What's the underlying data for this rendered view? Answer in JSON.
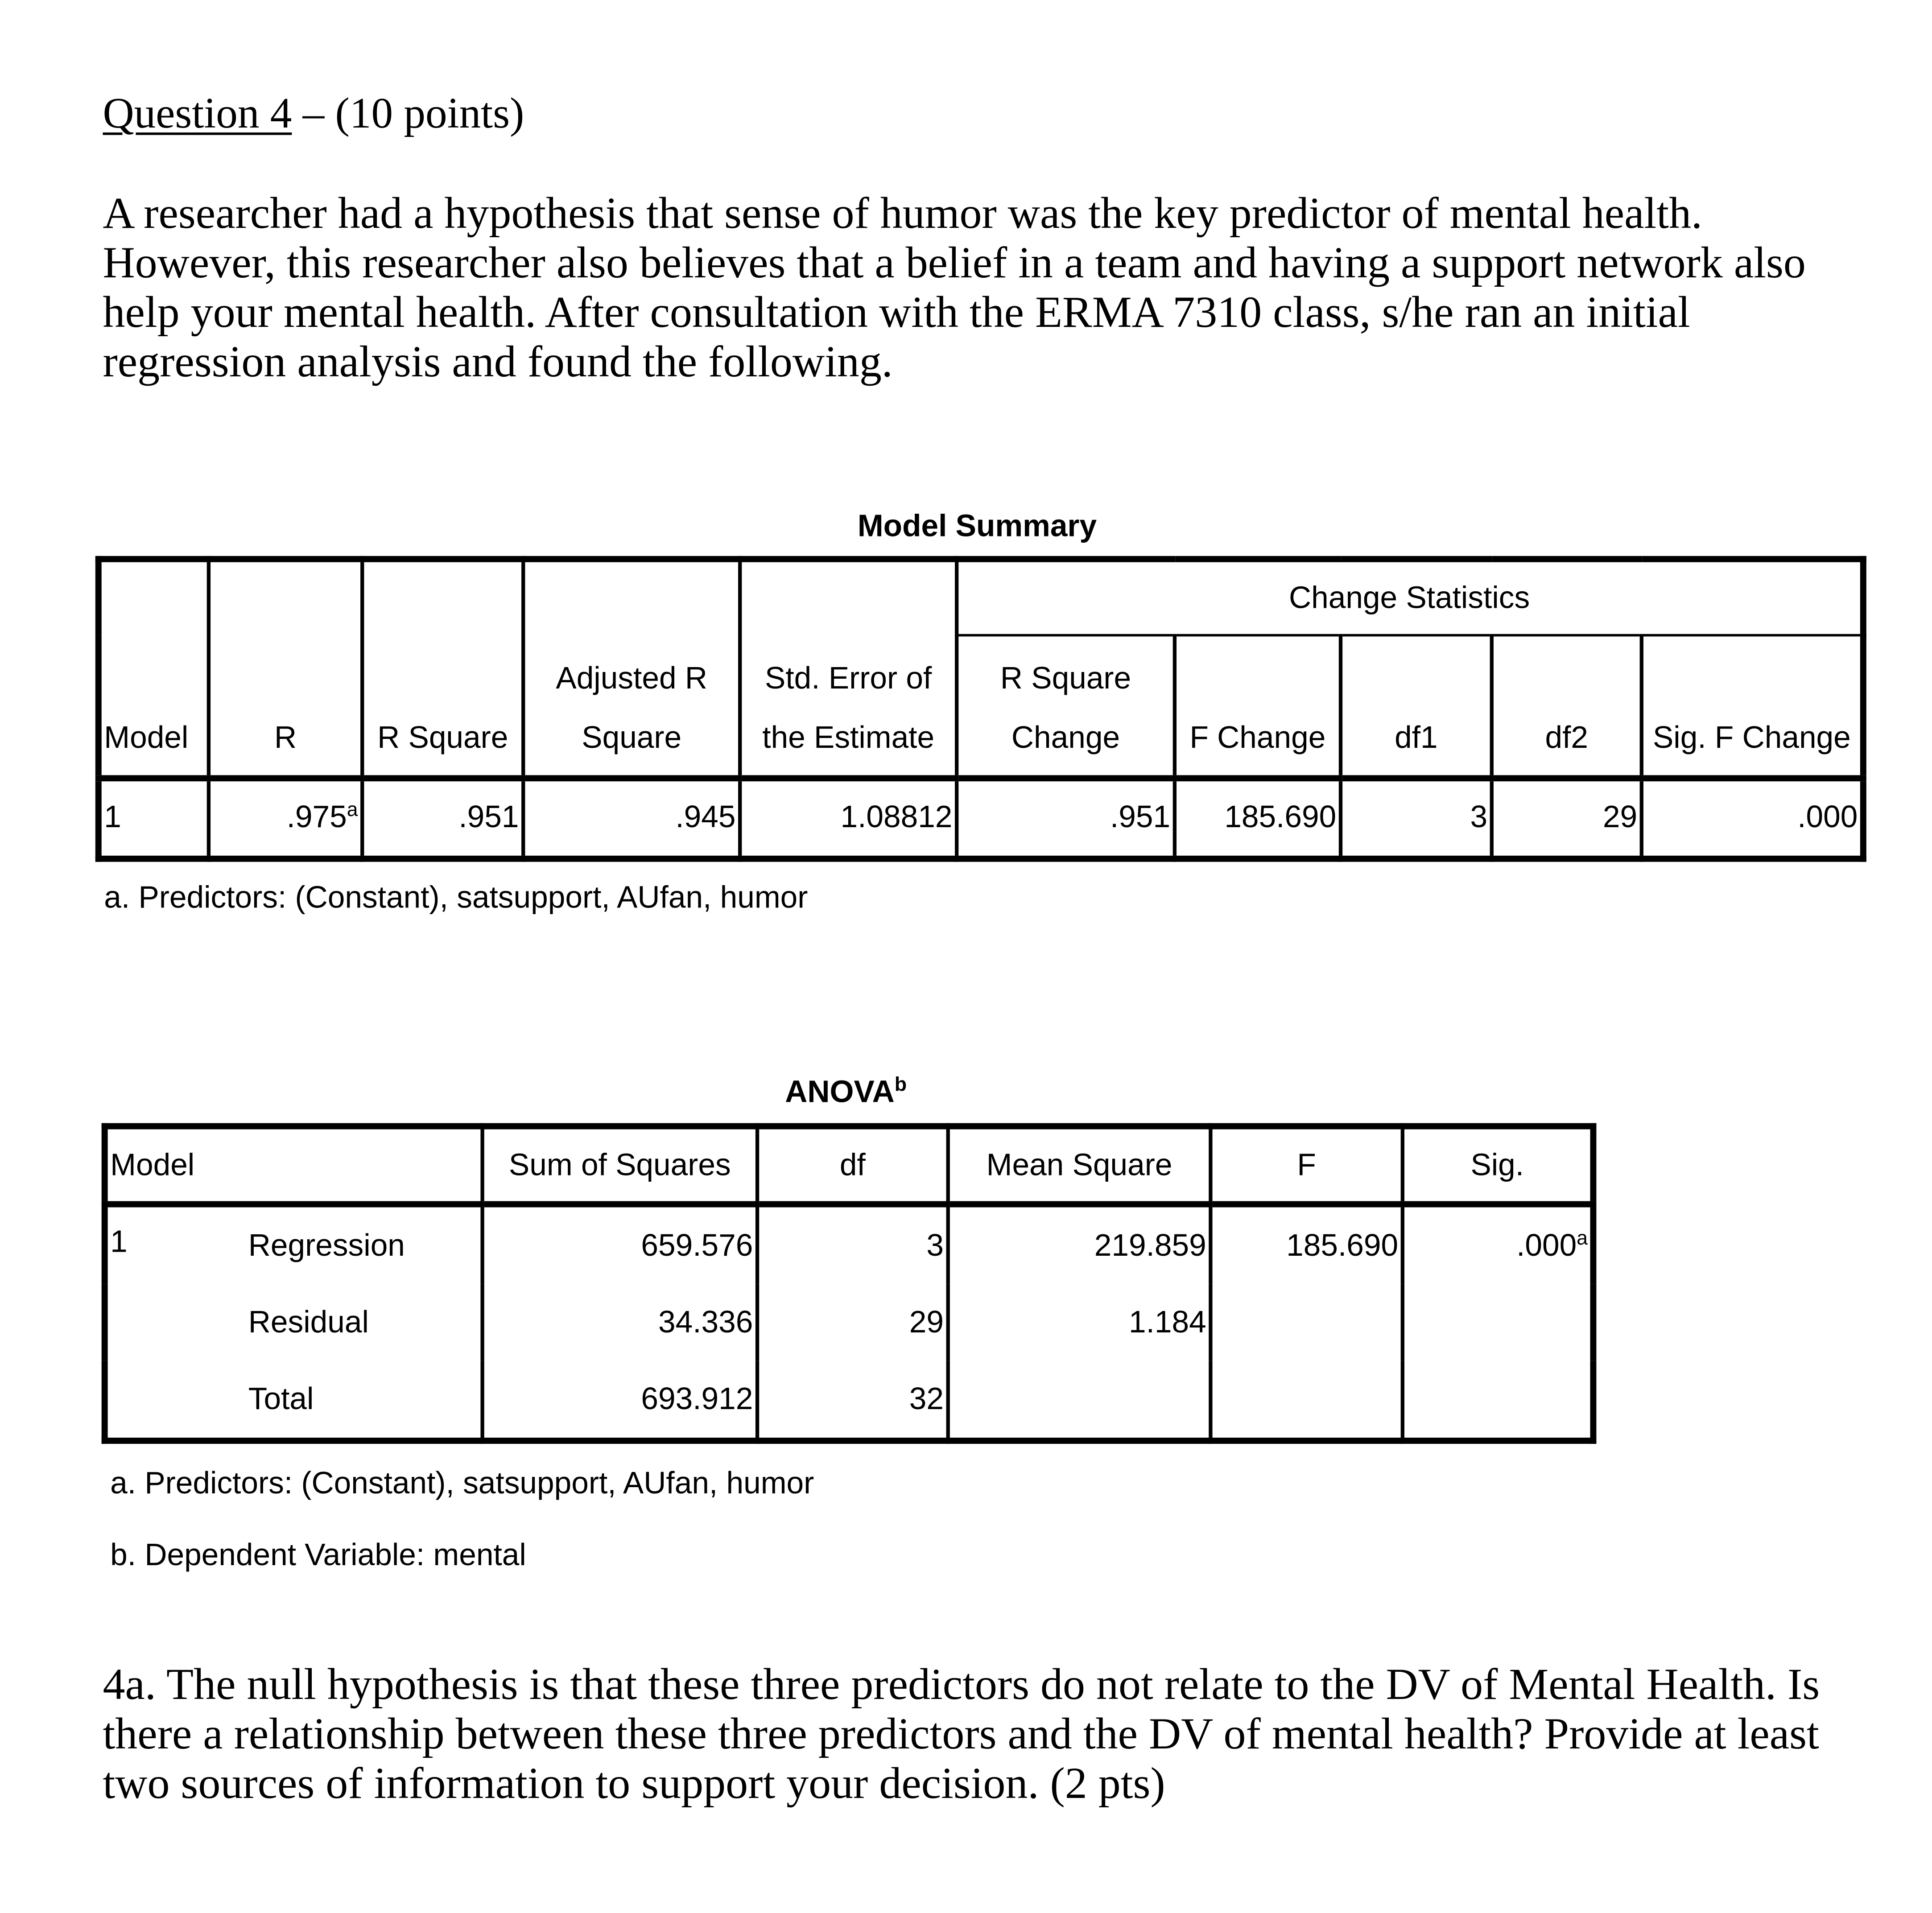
{
  "question": {
    "label": "Question 4",
    "rest": " – (10 points)"
  },
  "intro": "A researcher had a hypothesis that sense of humor was the key predictor of mental health. However, this researcher also believes that a belief in a team and having a support network also help your mental health. After consultation with the ERMA 7310 class, s/he ran an initial regression analysis and found the following.",
  "model_summary": {
    "title": "Model Summary",
    "group_header": "Change Statistics",
    "headers": [
      "Model",
      "R",
      "R Square",
      "Adjusted R Square",
      "Std. Error of the Estimate",
      "R Square Change",
      "F Change",
      "df1",
      "df2",
      "Sig. F Change"
    ],
    "row": {
      "model": "1",
      "r": ".975",
      "r_sup": "a",
      "r_square": ".951",
      "adj_r_square": ".945",
      "std_error": "1.08812",
      "r_square_change": ".951",
      "f_change": "185.690",
      "df1": "3",
      "df2": "29",
      "sig_f_change": ".000"
    },
    "footnote": "a. Predictors: (Constant), satsupport, AUfan, humor"
  },
  "anova": {
    "title": "ANOVA",
    "title_sup": "b",
    "headers": [
      "Model",
      "Sum of Squares",
      "df",
      "Mean Square",
      "F",
      "Sig."
    ],
    "model": "1",
    "rows": [
      {
        "label": "Regression",
        "ss": "659.576",
        "df": "3",
        "ms": "219.859",
        "f": "185.690",
        "sig": ".000",
        "sig_sup": "a"
      },
      {
        "label": "Residual",
        "ss": "34.336",
        "df": "29",
        "ms": "1.184"
      },
      {
        "label": "Total",
        "ss": "693.912",
        "df": "32"
      }
    ],
    "footnotes": [
      "a. Predictors: (Constant), satsupport, AUfan, humor",
      "b. Dependent Variable: mental"
    ]
  },
  "q4a": "4a. The null hypothesis is that these three predictors do not relate to the DV of Mental Health. Is there a relationship between these three predictors and the DV of mental health? Provide at least two sources of information to support your decision. (2 pts)"
}
